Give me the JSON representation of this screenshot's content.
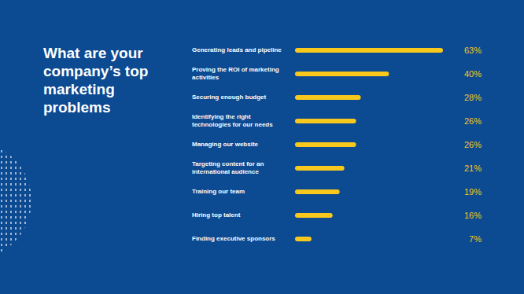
{
  "chart_data": {
    "type": "bar",
    "orientation": "horizontal",
    "title": "What are your company’s top marketing problems",
    "categories": [
      "Generating leads and pipeline",
      "Proving the ROI of marketing activities",
      "Securing enough budget",
      "Identifying the right technologies for our needs",
      "Managing our website",
      "Targeting content for an international audience",
      "Training our team",
      "Hiring top talent",
      "Finding executive sponsors"
    ],
    "values": [
      63,
      40,
      28,
      26,
      26,
      21,
      19,
      16,
      7
    ],
    "value_labels": [
      "63%",
      "40%",
      "28%",
      "26%",
      "26%",
      "21%",
      "19%",
      "16%",
      "7%"
    ],
    "color": "#f8c81c",
    "xlim": [
      0,
      63
    ],
    "data_labels": true,
    "tick_labels": false,
    "grid": false
  }
}
